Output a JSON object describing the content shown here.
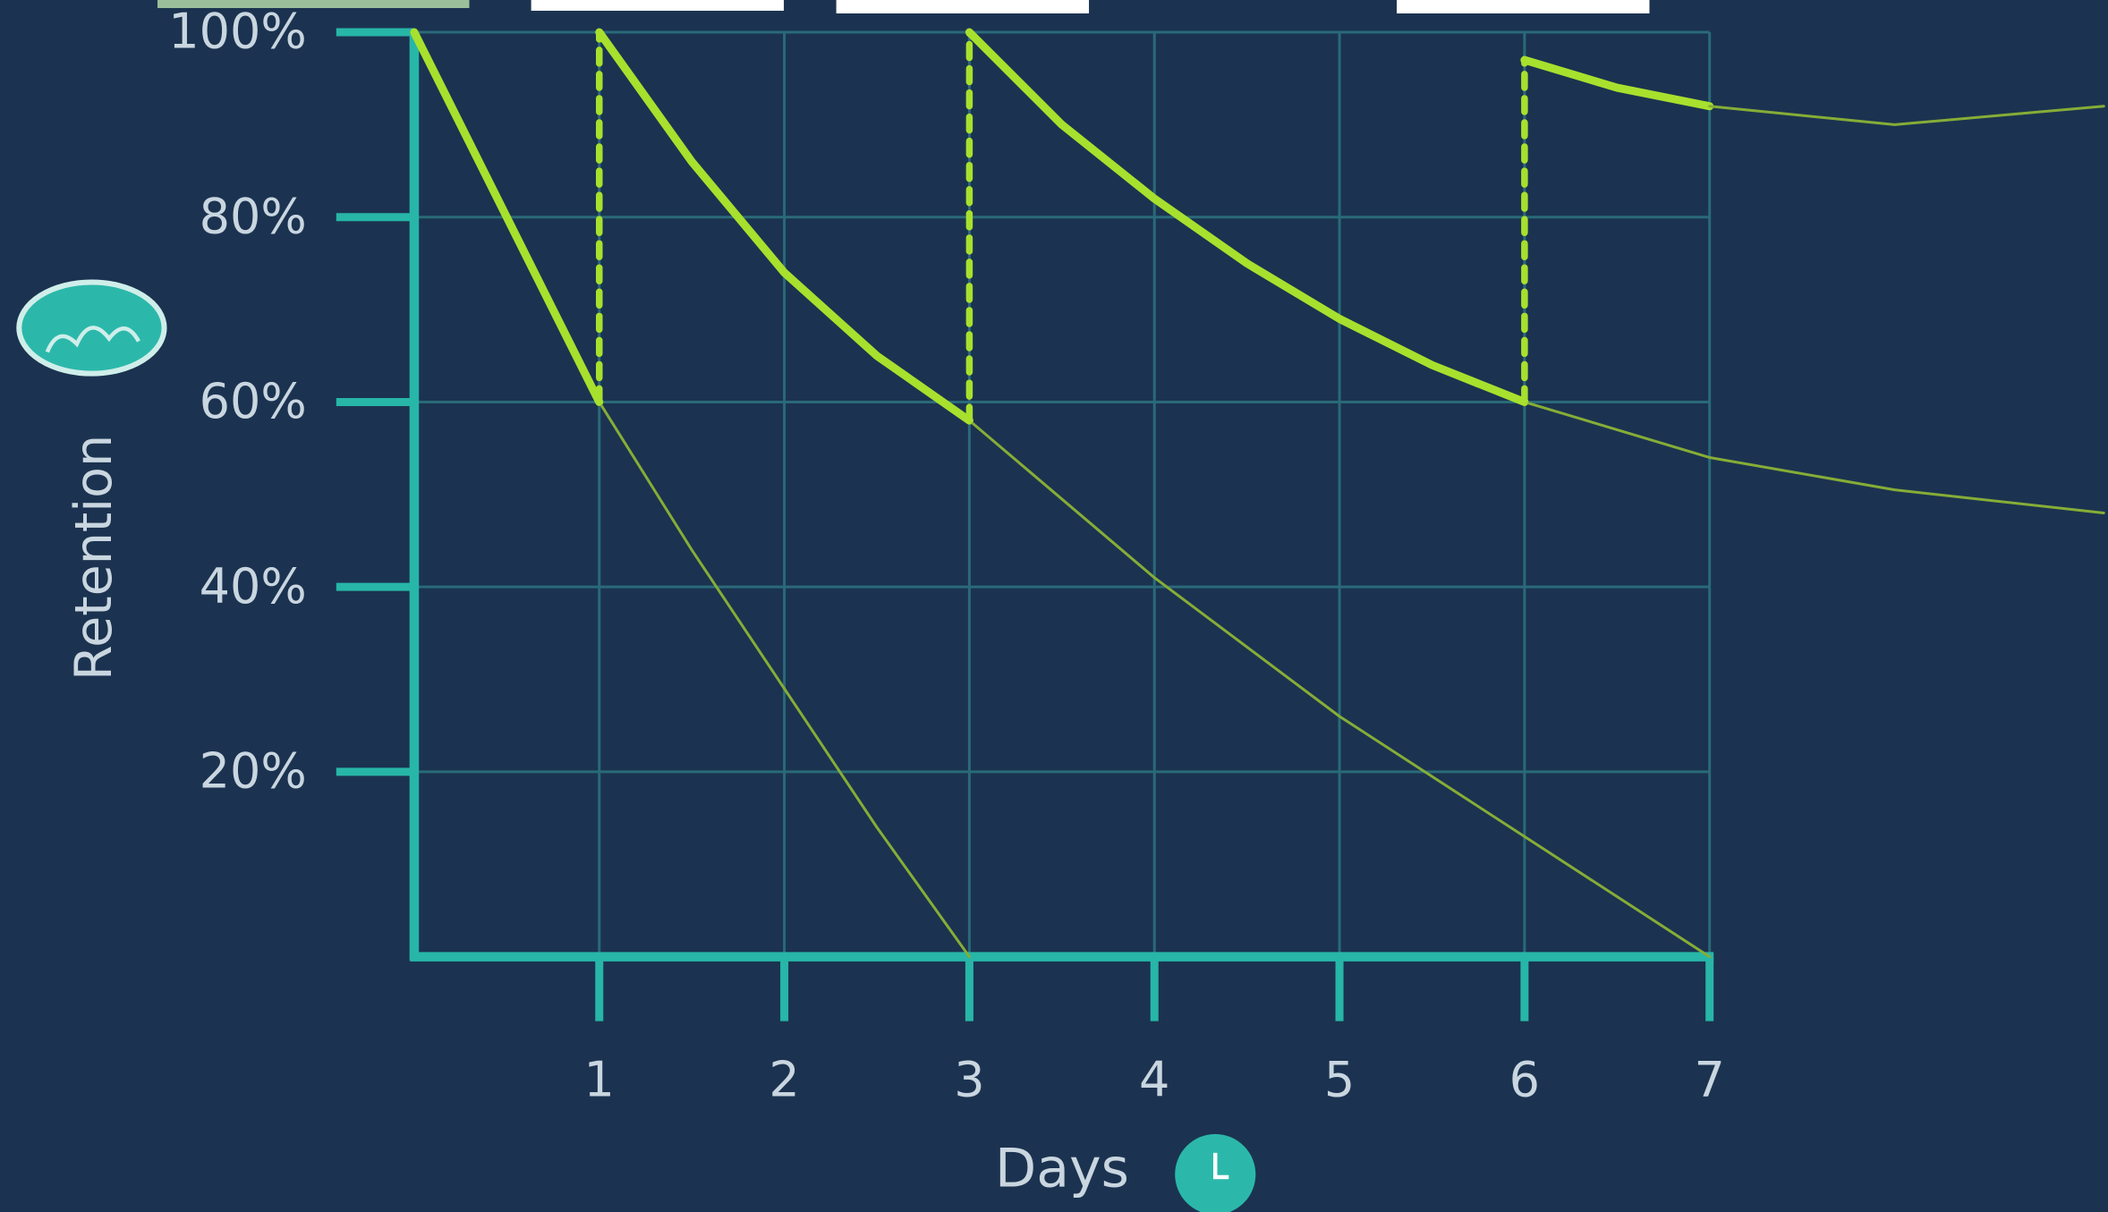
{
  "chart_data": {
    "type": "line",
    "xlabel": "Days",
    "ylabel": "Retention",
    "xlim": [
      0,
      9.13
    ],
    "ylim": [
      0,
      100
    ],
    "xticks": [
      1,
      2,
      3,
      4,
      5,
      6,
      7
    ],
    "yticks": [
      {
        "value": 20,
        "label": "20%"
      },
      {
        "value": 40,
        "label": "40%"
      },
      {
        "value": 60,
        "label": "60%"
      },
      {
        "value": 80,
        "label": "80%"
      },
      {
        "value": 100,
        "label": "100%"
      }
    ],
    "grid": true,
    "series": [
      {
        "color": "#a8e02e",
        "style": "solid",
        "linewidth": 6,
        "x": [
          0,
          0.25,
          0.5,
          0.75,
          1
        ],
        "values": [
          100,
          90,
          80,
          70,
          60
        ]
      },
      {
        "color": "#86ad37",
        "style": "solid",
        "linewidth": 2,
        "x": [
          1,
          1.5,
          2,
          2.5,
          3
        ],
        "values": [
          60,
          44,
          29,
          14,
          0
        ]
      },
      {
        "color": "#a8e02e",
        "style": "dashed",
        "linewidth": 5,
        "x": [
          1,
          1
        ],
        "values": [
          60,
          100
        ]
      },
      {
        "color": "#a8e02e",
        "style": "solid",
        "linewidth": 6,
        "x": [
          1,
          1.5,
          2,
          2.5,
          3
        ],
        "values": [
          100,
          86,
          74,
          65,
          58
        ]
      },
      {
        "color": "#86ad37",
        "style": "solid",
        "linewidth": 2,
        "x": [
          3,
          4,
          5,
          6,
          7
        ],
        "values": [
          58,
          41,
          26,
          13,
          0
        ]
      },
      {
        "color": "#a8e02e",
        "style": "dashed",
        "linewidth": 5,
        "x": [
          3,
          3
        ],
        "values": [
          58,
          100
        ]
      },
      {
        "color": "#a8e02e",
        "style": "solid",
        "linewidth": 6,
        "x": [
          3,
          3.5,
          4,
          4.5,
          5,
          5.5,
          6
        ],
        "values": [
          100,
          90,
          82,
          75,
          69,
          64,
          60
        ]
      },
      {
        "color": "#86ad37",
        "style": "solid",
        "linewidth": 2,
        "x": [
          6,
          7,
          8,
          9.13
        ],
        "values": [
          60,
          54,
          50.5,
          48
        ]
      },
      {
        "color": "#a8e02e",
        "style": "dashed",
        "linewidth": 5,
        "x": [
          6,
          6
        ],
        "values": [
          60,
          97
        ]
      },
      {
        "color": "#a8e02e",
        "style": "solid",
        "linewidth": 6,
        "x": [
          6,
          6.5,
          7
        ],
        "values": [
          97,
          94,
          92
        ]
      },
      {
        "color": "#86ad37",
        "style": "solid",
        "linewidth": 2,
        "x": [
          7,
          8,
          9.13
        ],
        "values": [
          92,
          90,
          92
        ]
      }
    ]
  }
}
